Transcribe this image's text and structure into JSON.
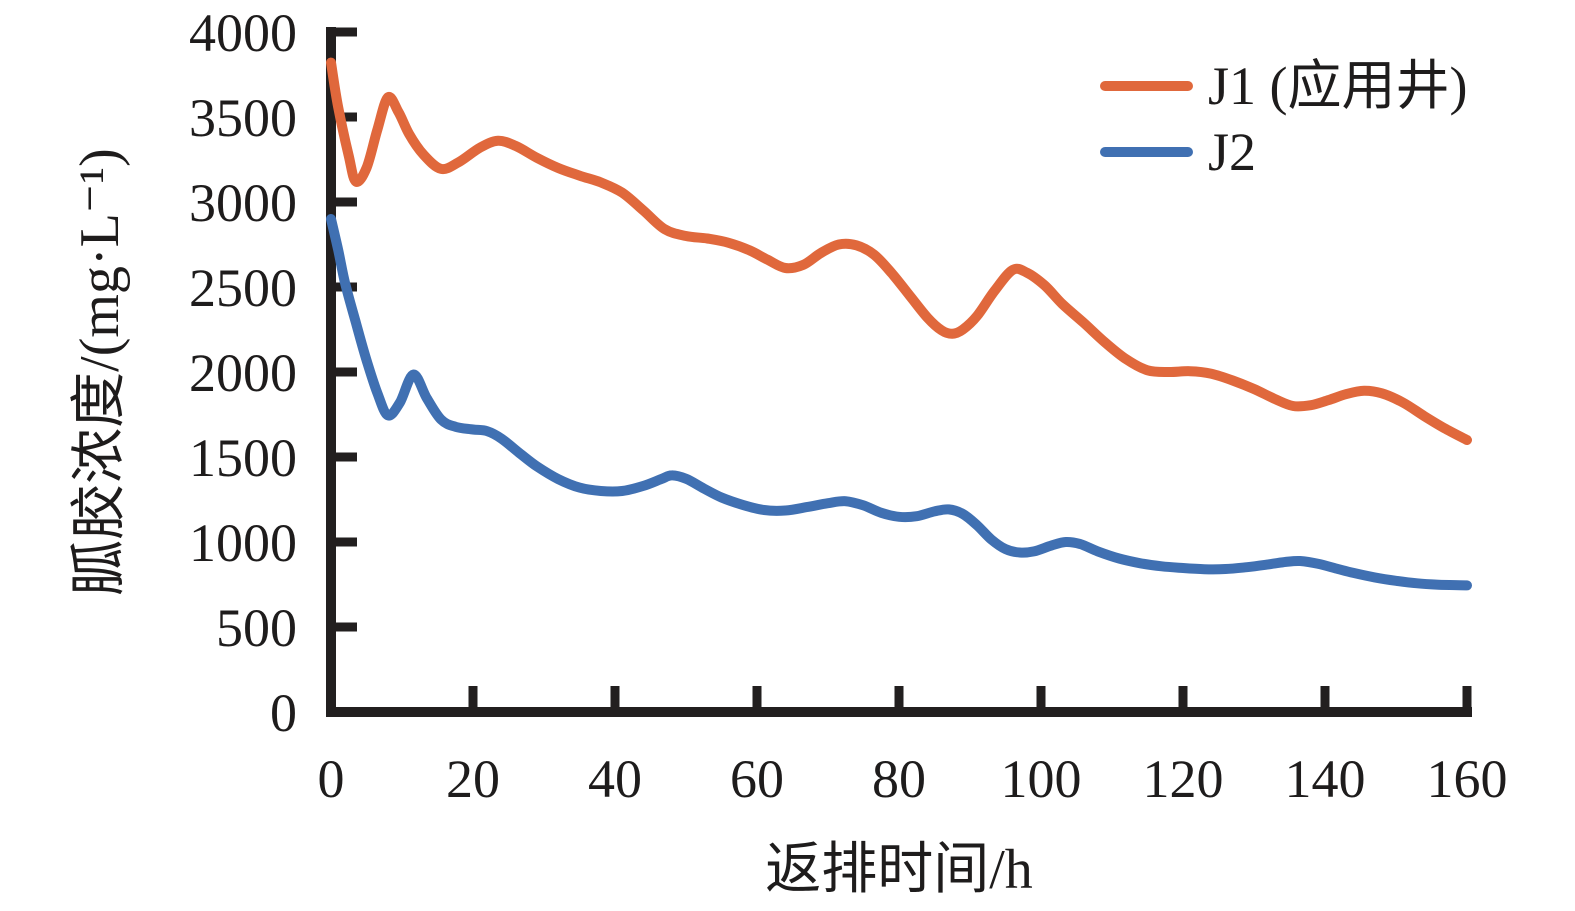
{
  "figure": {
    "background": "#ffffff",
    "axis_color": "#221f1f",
    "text_color": "#1e1c1c"
  },
  "chart_data": {
    "type": "line",
    "title": "",
    "xlabel": "返排时间/h",
    "ylabel": "胍胶浓度/(mg·L⁻¹)",
    "xlim": [
      0,
      160
    ],
    "ylim": [
      0,
      4000
    ],
    "xticks": [
      0,
      20,
      40,
      60,
      80,
      100,
      120,
      140,
      160
    ],
    "yticks": [
      0,
      500,
      1000,
      1500,
      2000,
      2500,
      3000,
      3500,
      4000
    ],
    "grid": false,
    "legend_position": "top-right",
    "series": [
      {
        "name": "J1 (应用井)",
        "color": "#E0683C",
        "points": [
          [
            0,
            3820
          ],
          [
            1,
            3560
          ],
          [
            2.5,
            3270
          ],
          [
            3.5,
            3120
          ],
          [
            5,
            3200
          ],
          [
            6.5,
            3420
          ],
          [
            8,
            3615
          ],
          [
            9.5,
            3530
          ],
          [
            11,
            3400
          ],
          [
            13,
            3280
          ],
          [
            15.5,
            3195
          ],
          [
            18,
            3235
          ],
          [
            21,
            3320
          ],
          [
            23.5,
            3360
          ],
          [
            26,
            3330
          ],
          [
            29,
            3260
          ],
          [
            32,
            3200
          ],
          [
            35,
            3155
          ],
          [
            38,
            3115
          ],
          [
            41,
            3055
          ],
          [
            44,
            2950
          ],
          [
            47,
            2840
          ],
          [
            50,
            2800
          ],
          [
            53,
            2785
          ],
          [
            56,
            2760
          ],
          [
            59,
            2715
          ],
          [
            61.5,
            2660
          ],
          [
            64,
            2612
          ],
          [
            66.5,
            2630
          ],
          [
            69,
            2700
          ],
          [
            71.5,
            2750
          ],
          [
            74,
            2745
          ],
          [
            76.5,
            2690
          ],
          [
            79,
            2580
          ],
          [
            81.5,
            2450
          ],
          [
            84,
            2320
          ],
          [
            86,
            2245
          ],
          [
            87.5,
            2225
          ],
          [
            89,
            2250
          ],
          [
            91,
            2330
          ],
          [
            93.5,
            2480
          ],
          [
            96,
            2600
          ],
          [
            98,
            2585
          ],
          [
            100.5,
            2510
          ],
          [
            103,
            2400
          ],
          [
            106,
            2290
          ],
          [
            109,
            2175
          ],
          [
            112,
            2075
          ],
          [
            115,
            2010
          ],
          [
            118,
            2000
          ],
          [
            121,
            2005
          ],
          [
            124,
            1990
          ],
          [
            127,
            1950
          ],
          [
            130,
            1900
          ],
          [
            133,
            1840
          ],
          [
            135.5,
            1800
          ],
          [
            138,
            1805
          ],
          [
            140.5,
            1835
          ],
          [
            143,
            1870
          ],
          [
            145.5,
            1890
          ],
          [
            148,
            1875
          ],
          [
            151,
            1820
          ],
          [
            154,
            1740
          ],
          [
            157,
            1665
          ],
          [
            160,
            1600
          ]
        ]
      },
      {
        "name": "J2",
        "color": "#4070B2",
        "points": [
          [
            0,
            2900
          ],
          [
            1,
            2720
          ],
          [
            2,
            2520
          ],
          [
            3.5,
            2290
          ],
          [
            5,
            2070
          ],
          [
            6.5,
            1880
          ],
          [
            8,
            1745
          ],
          [
            9.7,
            1820
          ],
          [
            11.6,
            1985
          ],
          [
            13.5,
            1845
          ],
          [
            15.5,
            1720
          ],
          [
            17.5,
            1678
          ],
          [
            20,
            1662
          ],
          [
            22,
            1652
          ],
          [
            24,
            1608
          ],
          [
            26.5,
            1525
          ],
          [
            29,
            1445
          ],
          [
            32,
            1370
          ],
          [
            35,
            1320
          ],
          [
            38,
            1300
          ],
          [
            41,
            1300
          ],
          [
            44,
            1330
          ],
          [
            46.5,
            1370
          ],
          [
            48,
            1392
          ],
          [
            50,
            1372
          ],
          [
            52.5,
            1315
          ],
          [
            55,
            1262
          ],
          [
            58,
            1218
          ],
          [
            61,
            1188
          ],
          [
            64,
            1185
          ],
          [
            67,
            1205
          ],
          [
            70,
            1228
          ],
          [
            72.5,
            1240
          ],
          [
            75,
            1215
          ],
          [
            77.5,
            1172
          ],
          [
            80,
            1148
          ],
          [
            82.5,
            1152
          ],
          [
            85,
            1180
          ],
          [
            87,
            1192
          ],
          [
            89,
            1165
          ],
          [
            91,
            1098
          ],
          [
            93,
            1015
          ],
          [
            95,
            958
          ],
          [
            97,
            938
          ],
          [
            99,
            945
          ],
          [
            101.5,
            980
          ],
          [
            103.5,
            1000
          ],
          [
            105.5,
            988
          ],
          [
            108,
            945
          ],
          [
            111,
            903
          ],
          [
            114,
            875
          ],
          [
            117,
            857
          ],
          [
            120,
            847
          ],
          [
            123,
            840
          ],
          [
            126,
            841
          ],
          [
            129,
            852
          ],
          [
            132,
            868
          ],
          [
            134.5,
            883
          ],
          [
            136.5,
            888
          ],
          [
            139,
            872
          ],
          [
            141.5,
            845
          ],
          [
            144,
            818
          ],
          [
            147,
            792
          ],
          [
            150,
            772
          ],
          [
            153,
            757
          ],
          [
            156,
            749
          ],
          [
            160,
            745
          ]
        ]
      }
    ]
  }
}
